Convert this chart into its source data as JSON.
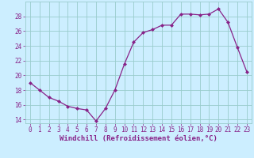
{
  "x": [
    0,
    1,
    2,
    3,
    4,
    5,
    6,
    7,
    8,
    9,
    10,
    11,
    12,
    13,
    14,
    15,
    16,
    17,
    18,
    19,
    20,
    21,
    22,
    23
  ],
  "y": [
    19.0,
    18.0,
    17.0,
    16.5,
    15.8,
    15.5,
    15.3,
    13.8,
    15.5,
    18.0,
    21.5,
    24.5,
    25.8,
    26.2,
    26.8,
    26.8,
    28.3,
    28.3,
    28.2,
    28.3,
    29.0,
    27.2,
    23.8,
    20.5
  ],
  "line_color": "#882288",
  "marker": "D",
  "markersize": 2.0,
  "linewidth": 0.9,
  "bg_color": "#cceeff",
  "grid_color": "#99cccc",
  "xlabel": "Windchill (Refroidissement éolien,°C)",
  "xlim": [
    -0.5,
    23.5
  ],
  "ylim": [
    13.5,
    30.0
  ],
  "yticks": [
    14,
    16,
    18,
    20,
    22,
    24,
    26,
    28
  ],
  "xticks": [
    0,
    1,
    2,
    3,
    4,
    5,
    6,
    7,
    8,
    9,
    10,
    11,
    12,
    13,
    14,
    15,
    16,
    17,
    18,
    19,
    20,
    21,
    22,
    23
  ],
  "tick_fontsize": 5.5,
  "xlabel_fontsize": 6.5,
  "label_color": "#882288"
}
